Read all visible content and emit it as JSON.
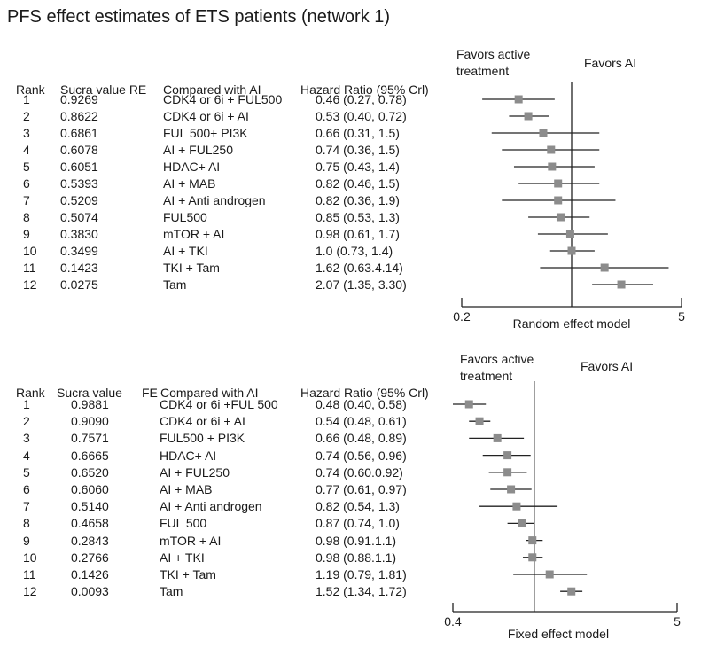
{
  "title": "PFS effect estimates of ETS patients (network 1)",
  "colors": {
    "axis": "#222222",
    "marker": "#8c8c8c",
    "ci": "#222222"
  },
  "chart_data": [
    {
      "type": "forest",
      "model_label": "Random effect model",
      "xscale": "log",
      "xlim": [
        0.2,
        5
      ],
      "reference": 1,
      "tick_labels": [
        "0.2",
        "5"
      ],
      "favors_left": [
        "Favors active",
        "treatment"
      ],
      "favors_right": "Favors AI",
      "headers": [
        "Rank",
        "Sucra value RE",
        "Compared with AI",
        "Hazard Ratio (95% Crl)"
      ],
      "rows": [
        {
          "rank": "1",
          "sucra": "0.9269",
          "comparison": "CDK4 or 6i + FUL500",
          "hr_text": "0.46 (0.27, 0.78)",
          "hr": 0.46,
          "lo": 0.27,
          "hi": 0.78
        },
        {
          "rank": "2",
          "sucra": "0.8622",
          "comparison": "CDK4 or 6i + AI",
          "hr_text": "0.53 (0.40, 0.72)",
          "hr": 0.53,
          "lo": 0.4,
          "hi": 0.72
        },
        {
          "rank": "3",
          "sucra": "0.6861",
          "comparison": "FUL 500+ PI3K",
          "hr_text": "0.66 (0.31, 1.5)",
          "hr": 0.66,
          "lo": 0.31,
          "hi": 1.5
        },
        {
          "rank": "4",
          "sucra": "0.6078",
          "comparison": "AI + FUL250",
          "hr_text": "0.74 (0.36, 1.5)",
          "hr": 0.74,
          "lo": 0.36,
          "hi": 1.5
        },
        {
          "rank": "5",
          "sucra": "0.6051",
          "comparison": "HDAC+ AI",
          "hr_text": "0.75 (0.43, 1.4)",
          "hr": 0.75,
          "lo": 0.43,
          "hi": 1.4
        },
        {
          "rank": "6",
          "sucra": "0.5393",
          "comparison": "AI + MAB",
          "hr_text": "0.82 (0.46, 1.5)",
          "hr": 0.82,
          "lo": 0.46,
          "hi": 1.5
        },
        {
          "rank": "7",
          "sucra": "0.5209",
          "comparison": "AI + Anti androgen",
          "hr_text": "0.82 (0.36, 1.9)",
          "hr": 0.82,
          "lo": 0.36,
          "hi": 1.9
        },
        {
          "rank": "8",
          "sucra": "0.5074",
          "comparison": "FUL500",
          "hr_text": "0.85 (0.53, 1.3)",
          "hr": 0.85,
          "lo": 0.53,
          "hi": 1.3
        },
        {
          "rank": "9",
          "sucra": "0.3830",
          "comparison": "mTOR + AI",
          "hr_text": "0.98 (0.61, 1.7)",
          "hr": 0.98,
          "lo": 0.61,
          "hi": 1.7
        },
        {
          "rank": "10",
          "sucra": "0.3499",
          "comparison": "AI + TKI",
          "hr_text": "1.0 (0.73, 1.4)",
          "hr": 1.0,
          "lo": 0.73,
          "hi": 1.4
        },
        {
          "rank": "11",
          "sucra": "0.1423",
          "comparison": "TKI + Tam",
          "hr_text": "1.62 (0.63.4.14)",
          "hr": 1.62,
          "lo": 0.63,
          "hi": 4.14
        },
        {
          "rank": "12",
          "sucra": "0.0275",
          "comparison": "Tam",
          "hr_text": "2.07 (1.35, 3.30)",
          "hr": 2.07,
          "lo": 1.35,
          "hi": 3.3
        }
      ]
    },
    {
      "type": "forest",
      "model_label": "Fixed effect model",
      "xscale": "log",
      "xlim": [
        0.4,
        5
      ],
      "reference": 1,
      "tick_labels": [
        "0.4",
        "5"
      ],
      "favors_left": [
        "Favors active",
        "treatment"
      ],
      "favors_right": "Favors AI",
      "headers": [
        "Rank",
        "Sucra value",
        "FE",
        "Compared with AI",
        "Hazard Ratio (95% Crl)"
      ],
      "rows": [
        {
          "rank": "1",
          "sucra": "0.9881",
          "comparison": "CDK4 or 6i +FUL 500",
          "hr_text": "0.48 (0.40, 0.58)",
          "hr": 0.48,
          "lo": 0.4,
          "hi": 0.58
        },
        {
          "rank": "2",
          "sucra": "0.9090",
          "comparison": "CDK4 or 6i + AI",
          "hr_text": "0.54 (0.48, 0.61)",
          "hr": 0.54,
          "lo": 0.48,
          "hi": 0.61
        },
        {
          "rank": "3",
          "sucra": "0.7571",
          "comparison": "FUL500 + PI3K",
          "hr_text": "0.66 (0.48, 0.89)",
          "hr": 0.66,
          "lo": 0.48,
          "hi": 0.89
        },
        {
          "rank": "4",
          "sucra": "0.6665",
          "comparison": "HDAC+ AI",
          "hr_text": "0.74 (0.56, 0.96)",
          "hr": 0.74,
          "lo": 0.56,
          "hi": 0.96
        },
        {
          "rank": "5",
          "sucra": "0.6520",
          "comparison": "AI + FUL250",
          "hr_text": "0.74 (0.60.0.92)",
          "hr": 0.74,
          "lo": 0.6,
          "hi": 0.92
        },
        {
          "rank": "6",
          "sucra": "0.6060",
          "comparison": "AI + MAB",
          "hr_text": "0.77 (0.61, 0.97)",
          "hr": 0.77,
          "lo": 0.61,
          "hi": 0.97
        },
        {
          "rank": "7",
          "sucra": "0.5140",
          "comparison": "AI + Anti androgen",
          "hr_text": "0.82 (0.54, 1.3)",
          "hr": 0.82,
          "lo": 0.54,
          "hi": 1.3
        },
        {
          "rank": "8",
          "sucra": "0.4658",
          "comparison": "FUL 500",
          "hr_text": "0.87 (0.74, 1.0)",
          "hr": 0.87,
          "lo": 0.74,
          "hi": 1.0
        },
        {
          "rank": "9",
          "sucra": "0.2843",
          "comparison": "mTOR + AI",
          "hr_text": "0.98 (0.91.1.1)",
          "hr": 0.98,
          "lo": 0.91,
          "hi": 1.1
        },
        {
          "rank": "10",
          "sucra": "0.2766",
          "comparison": "AI + TKI",
          "hr_text": "0.98 (0.88.1.1)",
          "hr": 0.98,
          "lo": 0.88,
          "hi": 1.1
        },
        {
          "rank": "11",
          "sucra": "0.1426",
          "comparison": "TKI + Tam",
          "hr_text": "1.19 (0.79, 1.81)",
          "hr": 1.19,
          "lo": 0.79,
          "hi": 1.81
        },
        {
          "rank": "12",
          "sucra": "0.0093",
          "comparison": "Tam",
          "hr_text": "1.52 (1.34, 1.72)",
          "hr": 1.52,
          "lo": 1.34,
          "hi": 1.72
        }
      ]
    }
  ]
}
